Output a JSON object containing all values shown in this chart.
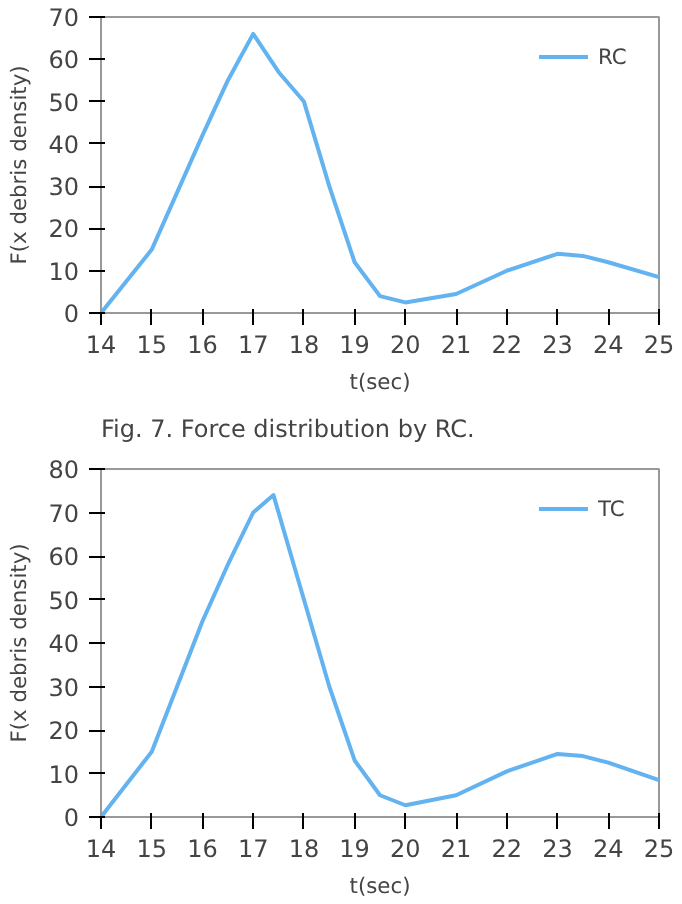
{
  "chart_data": [
    {
      "type": "line",
      "xlabel": "t(sec)",
      "ylabel": "F(x debris density)",
      "annotations": [
        "Fig. 7. Force distribution by RC."
      ],
      "xlim": [
        14,
        25
      ],
      "ylim": [
        0,
        70
      ],
      "xticks": [
        14,
        15,
        16,
        17,
        18,
        19,
        20,
        21,
        22,
        23,
        24,
        25
      ],
      "yticks": [
        0,
        10,
        20,
        30,
        40,
        50,
        60,
        70
      ],
      "grid": false,
      "legend": "top right",
      "series": [
        {
          "name": "RC",
          "color": "#63b3f0",
          "x": [
            14,
            15,
            16,
            16.5,
            17,
            17.5,
            18,
            18.5,
            19,
            19.5,
            20,
            21,
            22,
            23,
            23.5,
            24,
            25
          ],
          "values": [
            0,
            15,
            42,
            55,
            66,
            57,
            50,
            30,
            12,
            4,
            2.5,
            4.5,
            10,
            14,
            13.5,
            12,
            8.5
          ]
        }
      ]
    },
    {
      "type": "line",
      "xlabel": "t(sec)",
      "ylabel": "F(x debris density)",
      "xlim": [
        14,
        25
      ],
      "ylim": [
        0,
        80
      ],
      "xticks": [
        14,
        15,
        16,
        17,
        18,
        19,
        20,
        21,
        22,
        23,
        24,
        25
      ],
      "yticks": [
        0,
        10,
        20,
        30,
        40,
        50,
        60,
        70,
        80
      ],
      "grid": false,
      "legend": "top right",
      "series": [
        {
          "name": "TC",
          "color": "#63b3f0",
          "x": [
            14,
            15,
            16,
            16.5,
            17,
            17.4,
            18,
            18.5,
            19,
            19.5,
            20,
            21,
            22,
            23,
            23.5,
            24,
            25
          ],
          "values": [
            0,
            15,
            45,
            58,
            70,
            74,
            50,
            30,
            13,
            5,
            2.7,
            5,
            10.5,
            14.5,
            14,
            12.5,
            8.5
          ]
        }
      ]
    }
  ]
}
